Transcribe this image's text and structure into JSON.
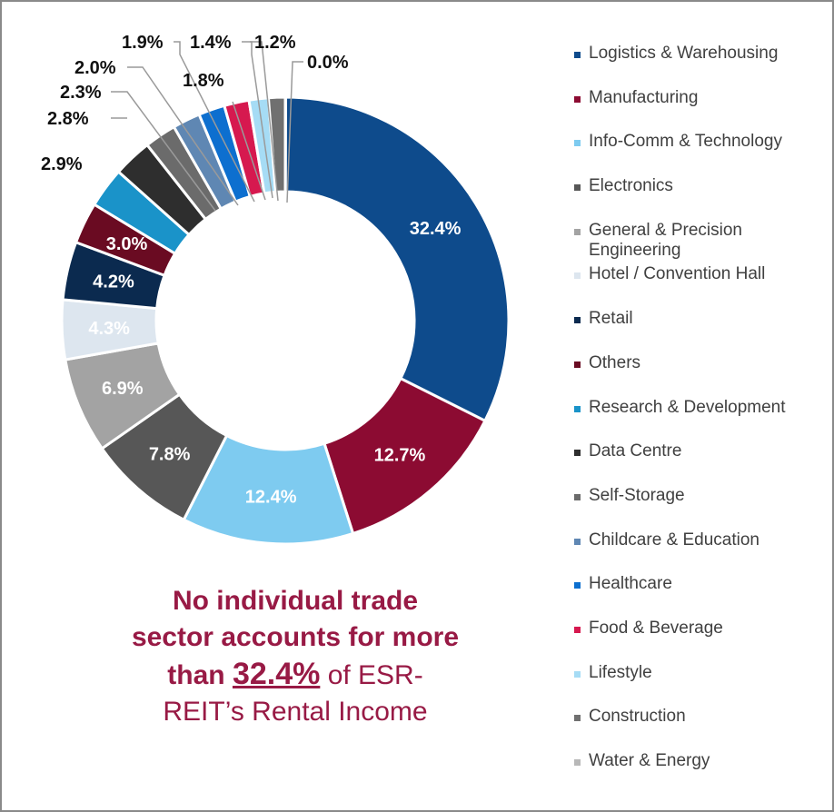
{
  "chart_data": {
    "type": "pie",
    "donut": true,
    "legend_position": "right",
    "series": [
      {
        "name": "Logistics & Warehousing",
        "value": 32.4,
        "label": "32.4%",
        "color": "#0e4b8c",
        "label_color": "#ffffff"
      },
      {
        "name": "Manufacturing",
        "value": 12.7,
        "label": "12.7%",
        "color": "#8c0b32",
        "label_color": "#ffffff"
      },
      {
        "name": "Info-Comm & Technology",
        "value": 12.4,
        "label": "12.4%",
        "color": "#7ecbf0",
        "label_color": "#ffffff"
      },
      {
        "name": "Electronics",
        "value": 7.8,
        "label": "7.8%",
        "color": "#575757",
        "label_color": "#ffffff"
      },
      {
        "name": "General & Precision Engineering",
        "value": 6.9,
        "label": "6.9%",
        "color": "#a3a3a3",
        "label_color": "#ffffff"
      },
      {
        "name": "Hotel / Convention Hall",
        "value": 4.3,
        "label": "4.3%",
        "color": "#dde6ef",
        "label_color": "#ffffff"
      },
      {
        "name": "Retail",
        "value": 4.2,
        "label": "4.2%",
        "color": "#0b2a4f",
        "label_color": "#ffffff"
      },
      {
        "name": "Others",
        "value": 3.0,
        "label": "3.0%",
        "color": "#6a0b22",
        "label_color": "#ffffff"
      },
      {
        "name": "Research & Development",
        "value": 2.9,
        "label": "2.9%",
        "color": "#1a93c9",
        "label_color": "#111111"
      },
      {
        "name": "Data Centre",
        "value": 2.8,
        "label": "2.8%",
        "color": "#2e2e2e",
        "label_color": "#111111"
      },
      {
        "name": "Self-Storage",
        "value": 2.3,
        "label": "2.3%",
        "color": "#6b6b6b",
        "label_color": "#111111"
      },
      {
        "name": "Childcare & Education",
        "value": 2.0,
        "label": "2.0%",
        "color": "#5f87b3",
        "label_color": "#111111"
      },
      {
        "name": "Healthcare",
        "value": 1.9,
        "label": "1.9%",
        "color": "#0d6fcf",
        "label_color": "#111111"
      },
      {
        "name": "Food & Beverage",
        "value": 1.8,
        "label": "1.8%",
        "color": "#d6194f",
        "label_color": "#111111"
      },
      {
        "name": "Lifestyle",
        "value": 1.4,
        "label": "1.4%",
        "color": "#a6dcf5",
        "label_color": "#111111"
      },
      {
        "name": "Construction",
        "value": 1.2,
        "label": "1.2%",
        "color": "#707070",
        "label_color": "#111111"
      },
      {
        "name": "Water & Energy",
        "value": 0.0,
        "label": "0.0%",
        "color": "#b8b8b8",
        "label_color": "#111111"
      }
    ]
  },
  "caption": {
    "line1": "No individual trade",
    "line2": "sector accounts for more",
    "line3_prefix": "than",
    "line3_highlight": "32.4%",
    "line3_suffix": "of ESR-",
    "line4": "REIT’s Rental Income"
  }
}
